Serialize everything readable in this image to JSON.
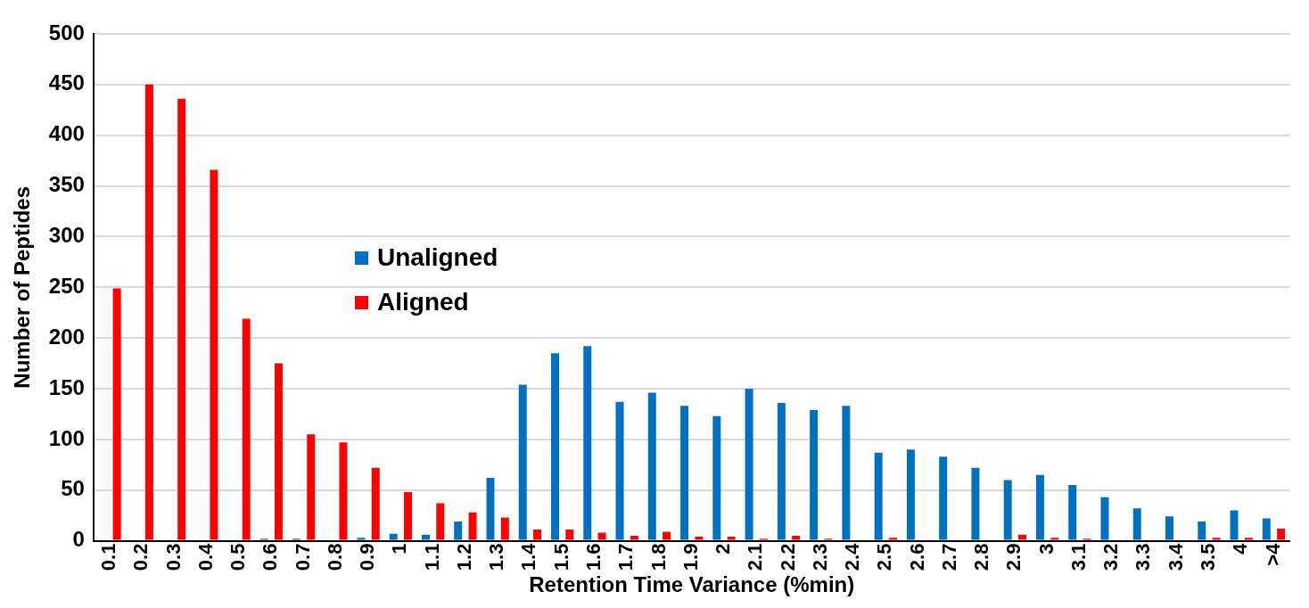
{
  "chart_data": {
    "type": "bar",
    "xlabel": "Retention Time Variance (%min)",
    "ylabel": "Number of Peptides",
    "categories": [
      "0.1",
      "0.2",
      "0.3",
      "0.4",
      "0.5",
      "0.6",
      "0.7",
      "0.8",
      "0.9",
      "1",
      "1.1",
      "1.2",
      "1.3",
      "1.4",
      "1.5",
      "1.6",
      "1.7",
      "1.8",
      "1.9",
      "2",
      "2.1",
      "2.2",
      "2.3",
      "2.4",
      "2.5",
      "2.6",
      "2.7",
      "2.8",
      "2.9",
      "3",
      "3.1",
      "3.2",
      "3.3",
      "3.4",
      "3.5",
      "4",
      ">4"
    ],
    "series": [
      {
        "name": "Unaligned",
        "color": "#0070c0",
        "values": [
          0,
          0,
          0,
          0,
          0,
          2,
          2,
          1,
          3,
          7,
          6,
          19,
          62,
          154,
          185,
          192,
          137,
          146,
          133,
          123,
          150,
          136,
          129,
          133,
          87,
          90,
          83,
          72,
          60,
          65,
          55,
          43,
          32,
          24,
          19,
          30,
          22
        ]
      },
      {
        "name": "Aligned",
        "color": "#ff0000",
        "values": [
          249,
          450,
          436,
          366,
          219,
          175,
          105,
          97,
          72,
          48,
          37,
          28,
          23,
          11,
          11,
          8,
          5,
          9,
          4,
          4,
          2,
          5,
          2,
          1,
          3,
          1,
          0,
          1,
          6,
          3,
          2,
          0,
          0,
          null,
          3,
          3,
          12
        ]
      }
    ],
    "ylim": [
      0,
      500
    ],
    "yticks": [
      0,
      50,
      100,
      150,
      200,
      250,
      300,
      350,
      400,
      450,
      500
    ],
    "grid": "y",
    "legend": "center left"
  }
}
